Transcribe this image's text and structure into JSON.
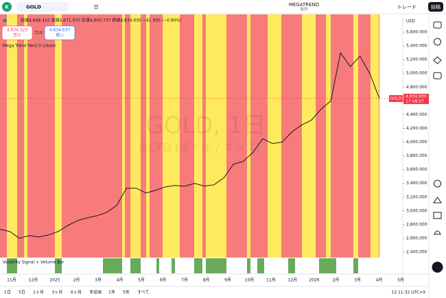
{
  "toolbar": {
    "avatar": "K",
    "symbol": "GOLD",
    "interval": "日",
    "layout_name": "MEGATREND",
    "layout_status": "保存",
    "trade": "トレード",
    "publish": "投稿"
  },
  "legend": {
    "ohlc": "始値4,648.410 高値4,671.970 安値4,600.737 終値4,634.930 −41.930 (−0.90%)",
    "sell_price": "4,634.323",
    "sell": "売り",
    "spread": "314",
    "buy_price": "4,634.637",
    "buy": "買い",
    "indicator": "Mega Trend Ver2.0 (close)"
  },
  "watermark": {
    "title": "GOLD, 1日",
    "subtitle": "金CFD (米ドル / オンス)"
  },
  "chart_data": {
    "type": "line",
    "currency": "USD",
    "color": "#131722",
    "values": [
      2730,
      2700,
      2600,
      2640,
      2620,
      2650,
      2700,
      2790,
      2860,
      2900,
      2930,
      2980,
      3080,
      3330,
      3330,
      3260,
      3300,
      3350,
      3370,
      3360,
      3400,
      3360,
      3380,
      3480,
      3680,
      3720,
      3850,
      4050,
      3980,
      4000,
      4150,
      4250,
      4320,
      4480,
      4600,
      5300,
      5100,
      5250,
      5000,
      4634.93
    ],
    "last_label": {
      "symbol": "GOLD",
      "price": "4,634.930",
      "countdown": "17:48:27"
    },
    "ylim": [
      2330,
      5850
    ],
    "yticks": [
      {
        "value": 2400,
        "label": "2,400.000"
      },
      {
        "value": 2600,
        "label": "2,600.000"
      },
      {
        "value": 2800,
        "label": "2,800.000"
      },
      {
        "value": 3000,
        "label": "3,000.000"
      },
      {
        "value": 3200,
        "label": "3,200.000"
      },
      {
        "value": 3400,
        "label": "3,400.000"
      },
      {
        "value": 3600,
        "label": "3,600.000"
      },
      {
        "value": 3800,
        "label": "3,800.000"
      },
      {
        "value": 4000,
        "label": "4,000.000"
      },
      {
        "value": 4200,
        "label": "4,200.000"
      },
      {
        "value": 4400,
        "label": "4,400.000"
      },
      {
        "value": 4600,
        "label": "4,600.000"
      },
      {
        "value": 4800,
        "label": "4,800.000"
      },
      {
        "value": 5000,
        "label": "5,000.000"
      },
      {
        "value": 5200,
        "label": "5,200.000"
      },
      {
        "value": 5400,
        "label": "5,400.000"
      },
      {
        "value": 5600,
        "label": "5,600.000"
      }
    ],
    "x_labels": [
      "11月",
      "12月",
      "2025",
      "2月",
      "3月",
      "4月",
      "5月",
      "6月",
      "7月",
      "8月",
      "9月",
      "10月",
      "11月",
      "12月",
      "2026",
      "2月",
      "3月",
      "4月",
      "5月"
    ]
  },
  "sub_pane": {
    "label": "Volatility Signal + Volume Bar"
  },
  "bottom_bar": {
    "ranges": [
      "1日",
      "5日",
      "1ヶ月",
      "3ヶ月",
      "6ヶ月",
      "年初来",
      "1年",
      "5年",
      "すべて"
    ],
    "clock": "12:11:32 UTC+9"
  }
}
